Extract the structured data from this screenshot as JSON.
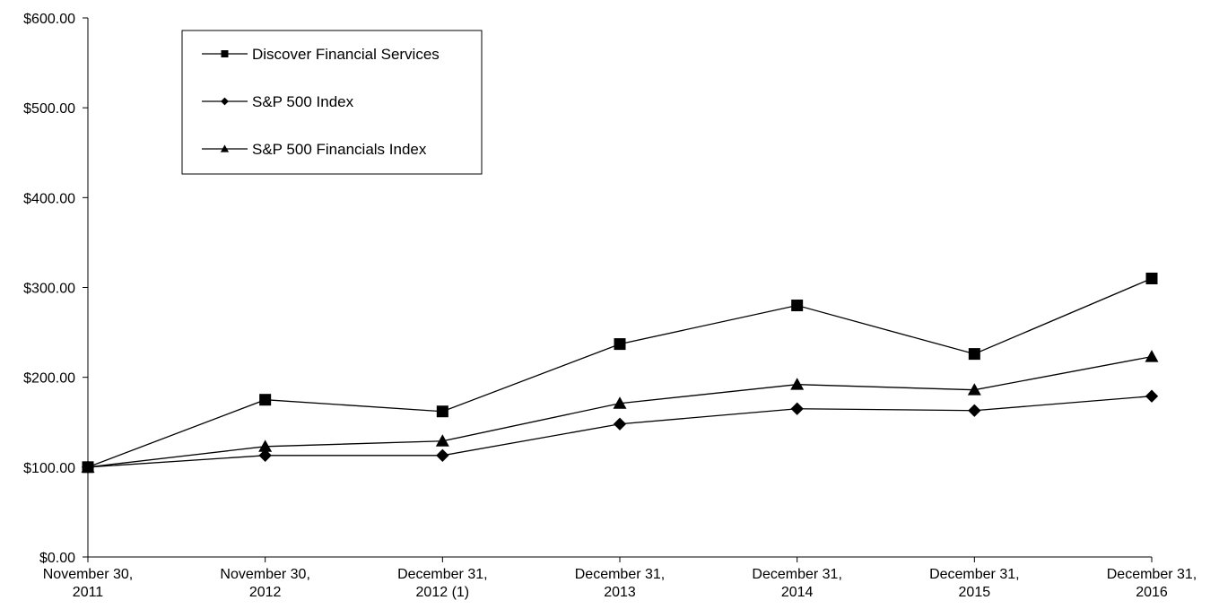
{
  "chart_data": {
    "type": "line",
    "title": "",
    "xlabel": "",
    "ylabel": "",
    "categories": [
      [
        "November 30,",
        "2011"
      ],
      [
        "November 30,",
        "2012"
      ],
      [
        "December 31,",
        "2012 (1)"
      ],
      [
        "December 31,",
        "2013"
      ],
      [
        "December 31,",
        "2014"
      ],
      [
        "December 31,",
        "2015"
      ],
      [
        "December 31,",
        "2016"
      ]
    ],
    "ylim": [
      0,
      600
    ],
    "yticks": [
      0,
      100,
      200,
      300,
      400,
      500,
      600
    ],
    "ytick_labels": [
      "$0.00",
      "$100.00",
      "$200.00",
      "$300.00",
      "$400.00",
      "$500.00",
      "$600.00"
    ],
    "grid": false,
    "legend_position": "top-left",
    "series": [
      {
        "name": "Discover Financial Services",
        "marker": "square",
        "values": [
          100,
          175,
          162,
          237,
          280,
          226,
          310
        ]
      },
      {
        "name": "S&P 500 Index",
        "marker": "diamond",
        "values": [
          100,
          113,
          113,
          148,
          165,
          163,
          179
        ]
      },
      {
        "name": "S&P 500 Financials Index",
        "marker": "triangle",
        "values": [
          100,
          123,
          129,
          171,
          192,
          186,
          223
        ]
      }
    ],
    "line_color": "#000000"
  }
}
